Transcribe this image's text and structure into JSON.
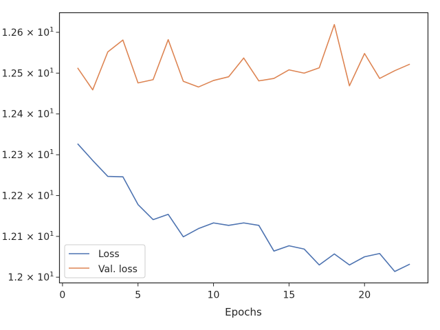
{
  "chart_data": {
    "type": "line",
    "title": "",
    "xlabel": "Epochs",
    "ylabel": "",
    "xlim": [
      -0.2,
      24.2
    ],
    "ylim": [
      11.986,
      12.648
    ],
    "xticks": [
      0,
      5,
      10,
      15,
      20
    ],
    "yticks": [
      {
        "value": 12.0,
        "label": "1.2 × 10¹"
      },
      {
        "value": 12.1,
        "label": "1.21 × 10¹"
      },
      {
        "value": 12.2,
        "label": "1.22 × 10¹"
      },
      {
        "value": 12.3,
        "label": "1.23 × 10¹"
      },
      {
        "value": 12.4,
        "label": "1.24 × 10¹"
      },
      {
        "value": 12.5,
        "label": "1.25 × 10¹"
      },
      {
        "value": 12.6,
        "label": "1.26 × 10¹"
      }
    ],
    "grid": false,
    "legend_position": "bottom-left",
    "x": [
      1,
      2,
      3,
      4,
      5,
      6,
      7,
      8,
      9,
      10,
      11,
      12,
      13,
      14,
      15,
      16,
      17,
      18,
      19,
      20,
      21,
      22,
      23
    ],
    "series": [
      {
        "name": "Loss",
        "color": "#4c72b0",
        "values": [
          12.327,
          12.286,
          12.247,
          12.246,
          12.178,
          12.141,
          12.154,
          12.099,
          12.119,
          12.133,
          12.127,
          12.133,
          12.127,
          12.064,
          12.077,
          12.069,
          12.03,
          12.057,
          12.03,
          12.05,
          12.058,
          12.014,
          12.032
        ]
      },
      {
        "name": "Val. loss",
        "color": "#dd8452",
        "values": [
          12.513,
          12.459,
          12.552,
          12.581,
          12.476,
          12.484,
          12.582,
          12.48,
          12.466,
          12.482,
          12.491,
          12.537,
          12.481,
          12.487,
          12.508,
          12.5,
          12.513,
          12.619,
          12.469,
          12.548,
          12.487,
          12.506,
          12.522
        ]
      }
    ]
  }
}
